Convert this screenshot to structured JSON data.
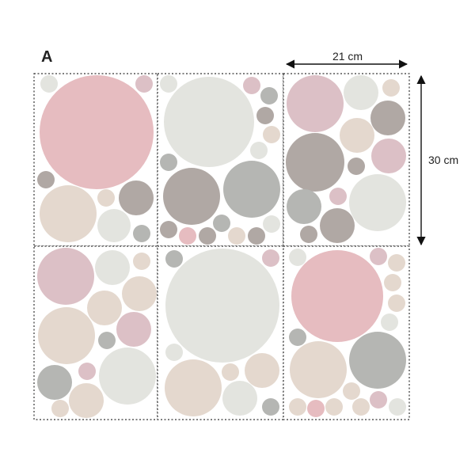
{
  "label": "A",
  "dimensions": {
    "width": "21 cm",
    "height": "30 cm"
  }
}
